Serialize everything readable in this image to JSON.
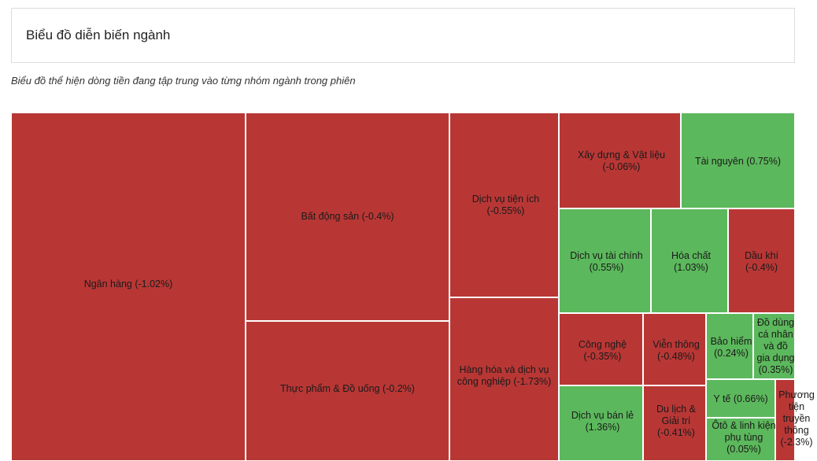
{
  "header": {
    "title": "Biểu đồ diễn biến ngành"
  },
  "description": "Biểu đồ thể hiện dòng tiền đang tập trung vào từng nhóm ngành trong phiên",
  "colors": {
    "down": "#b83735",
    "up": "#5cb85c"
  },
  "chart_data": {
    "type": "treemap",
    "title": "Biểu đồ diễn biến ngành",
    "items": [
      {
        "name": "Ngân hàng",
        "change": "-1.02%"
      },
      {
        "name": "Bất động sản",
        "change": "-0.4%"
      },
      {
        "name": "Thực phẩm & Đồ uống",
        "change": "-0.2%"
      },
      {
        "name": "Dịch vụ tiện ích",
        "change": "-0.55%"
      },
      {
        "name": "Hàng hóa và dịch vụ công nghiệp",
        "change": "-1.73%"
      },
      {
        "name": "Xây dựng & Vật liệu",
        "change": "-0.06%"
      },
      {
        "name": "Tài nguyên",
        "change": "0.75%"
      },
      {
        "name": "Dịch vụ tài chính",
        "change": "0.55%"
      },
      {
        "name": "Hóa chất",
        "change": "1.03%"
      },
      {
        "name": "Dầu khí",
        "change": "-0.4%"
      },
      {
        "name": "Công nghệ",
        "change": "-0.35%"
      },
      {
        "name": "Viễn thông",
        "change": "-0.48%"
      },
      {
        "name": "Bảo hiểm",
        "change": "0.24%"
      },
      {
        "name": "Đồ dùng cá nhân và đồ gia dụng",
        "change": "0.35%"
      },
      {
        "name": "Dịch vụ bán lẻ",
        "change": "1.36%"
      },
      {
        "name": "Du lịch & Giải trí",
        "change": "-0.41%"
      },
      {
        "name": "Y tế",
        "change": "0.66%"
      },
      {
        "name": "Ôtô & linh kiện phụ tùng",
        "change": "0.05%"
      },
      {
        "name": "Phương tiện truyền thông",
        "change": "-2.3%"
      }
    ]
  }
}
